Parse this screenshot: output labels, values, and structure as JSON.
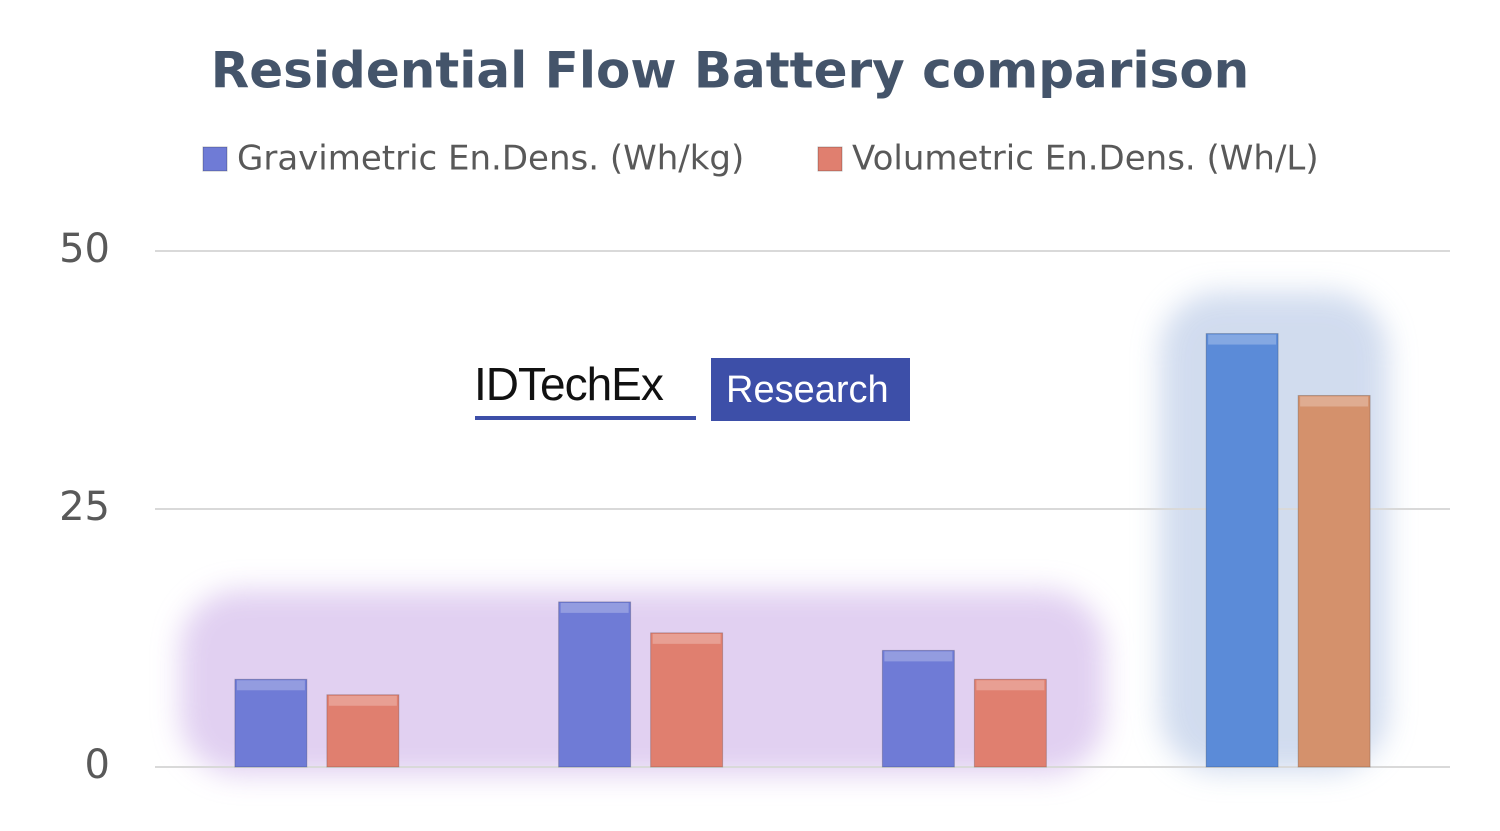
{
  "chart_data": {
    "type": "bar",
    "title": "Residential Flow Battery comparison",
    "watermark": [
      "IDTechEx",
      "Research"
    ],
    "categories": [
      null,
      null,
      null,
      null
    ],
    "series": [
      {
        "name": "Gravimetric En.Dens. (Wh/kg)",
        "color": "#6f7bd6",
        "colors": [
          "#6f7bd6",
          "#6f7bd6",
          "#6f7bd6",
          "#5b8bd8"
        ],
        "values": [
          8.5,
          16,
          11.3,
          42
        ]
      },
      {
        "name": "Volumetric En.Dens. (Wh/L)",
        "color": "#e07f6f",
        "colors": [
          "#e07f6f",
          "#e07f6f",
          "#e07f6f",
          "#d4916c"
        ],
        "values": [
          7,
          13,
          8.5,
          36
        ]
      }
    ],
    "ylim": [
      0,
      50
    ],
    "yticks": [
      0,
      25,
      50
    ],
    "grid": true,
    "legend": "top"
  }
}
